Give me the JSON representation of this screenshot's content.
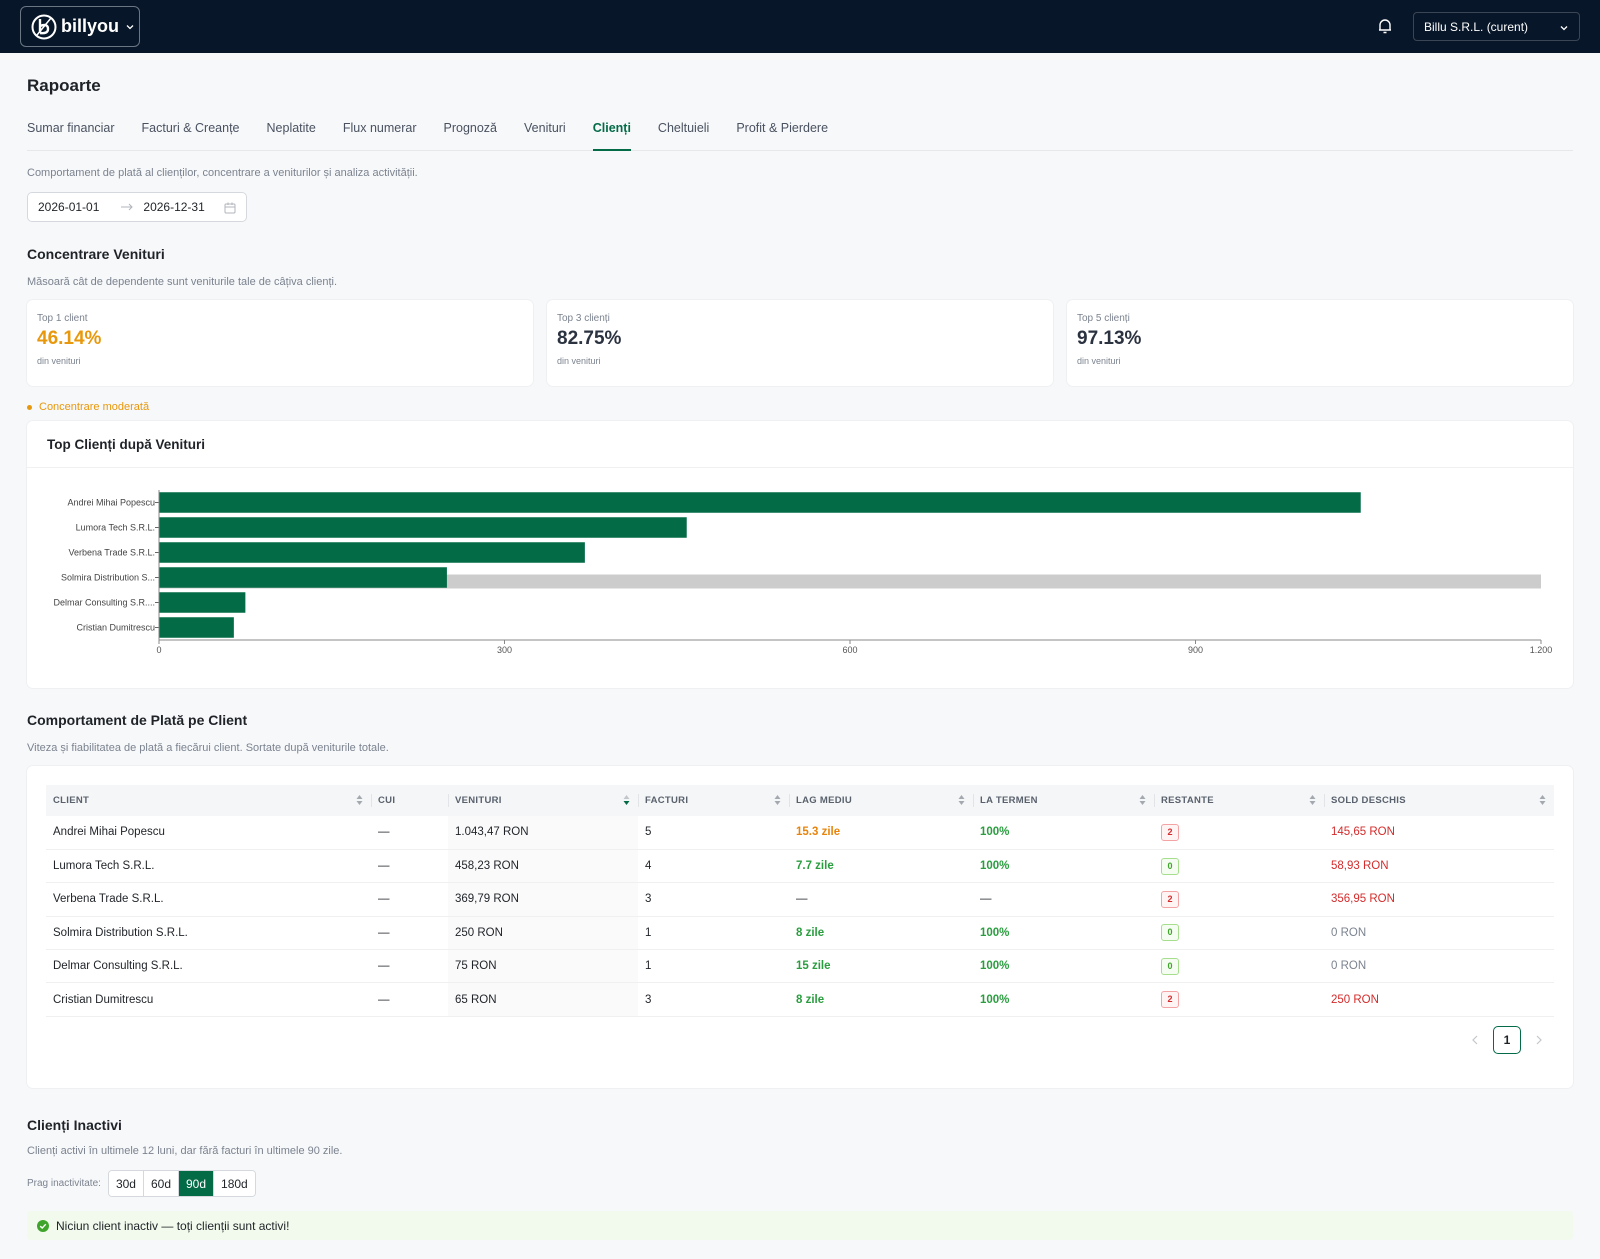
{
  "header": {
    "brand": "billyou",
    "company": "Billu S.R.L. (curent)"
  },
  "page": {
    "title": "Rapoarte",
    "tabs": [
      "Sumar financiar",
      "Facturi & Creanțe",
      "Neplatite",
      "Flux numerar",
      "Prognoză",
      "Venituri",
      "Clienți",
      "Cheltuieli",
      "Profit & Pierdere"
    ],
    "description": "Comportament de plată al clienților, concentrare a veniturilor și analiza activității.",
    "date_from": "2026-01-01",
    "date_to": "2026-12-31"
  },
  "concentration": {
    "title": "Concentrare Venituri",
    "subtitle": "Măsoară cât de dependente sunt veniturile tale de câțiva clienți.",
    "cards": [
      {
        "label": "Top 1 client",
        "value": "46.14%",
        "note": "din venituri"
      },
      {
        "label": "Top 3 clienți",
        "value": "82.75%",
        "note": "din venituri"
      },
      {
        "label": "Top 5 clienți",
        "value": "97.13%",
        "note": "din venituri"
      }
    ],
    "status": "Concentrare moderată"
  },
  "chart_data": {
    "type": "hbar",
    "title": "Top Clienți după Venituri",
    "categories": [
      "Andrei Mihai Popescu",
      "Lumora Tech S.R.L.",
      "Verbena Trade S.R.L.",
      "Solmira Distribution S...",
      "Delmar Consulting S.R....",
      "Cristian Dumitrescu"
    ],
    "values": [
      1043.47,
      458.23,
      369.79,
      250,
      75,
      65
    ],
    "color": "#046b47",
    "xlim": [
      0,
      1200
    ],
    "xticks": [
      0,
      300,
      600,
      900,
      {
        "value": 1200,
        "label": "1.200"
      }
    ]
  },
  "table": {
    "title": "Comportament de Plată pe Client",
    "subtitle": "Viteza și fiabilitatea de plată a fiecărui client. Sortate după veniturile totale.",
    "columns": [
      "CLIENT",
      "CUI",
      "VENITURI",
      "FACTURI",
      "LAG MEDIU",
      "LA TERMEN",
      "RESTANTE",
      "SOLD DESCHIS"
    ],
    "rows": [
      [
        "Andrei Mihai Popescu",
        "—",
        "1.043,47 RON",
        "5",
        "15.3 zile",
        "100%",
        "2",
        "145,65 RON"
      ],
      [
        "Lumora Tech S.R.L.",
        "—",
        "458,23 RON",
        "4",
        "7.7 zile",
        "100%",
        "0",
        "58,93 RON"
      ],
      [
        "Verbena Trade S.R.L.",
        "—",
        "369,79 RON",
        "3",
        "—",
        "—",
        "2",
        "356,95 RON"
      ],
      [
        "Solmira Distribution S.R.L.",
        "—",
        "250 RON",
        "1",
        "8 zile",
        "100%",
        "0",
        "0 RON"
      ],
      [
        "Delmar Consulting S.R.L.",
        "—",
        "75 RON",
        "1",
        "15 zile",
        "100%",
        "0",
        "0 RON"
      ],
      [
        "Cristian Dumitrescu",
        "—",
        "65 RON",
        "3",
        "8 zile",
        "100%",
        "2",
        "250 RON"
      ]
    ],
    "page": "1"
  },
  "inactive": {
    "title": "Clienți Inactivi",
    "subtitle": "Clienți activi în ultimele 12 luni, dar fără facturi în ultimele 90 zile.",
    "threshold_label": "Prag inactivitate:",
    "options": [
      "30d",
      "60d",
      "90d",
      "180d"
    ],
    "message": "Niciun client inactiv — toți clienții sunt activi!"
  }
}
